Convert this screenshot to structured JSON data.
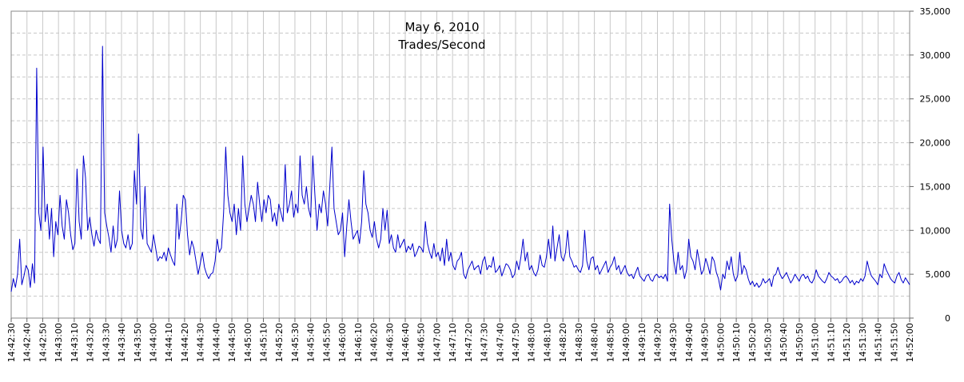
{
  "chart_data": {
    "type": "line",
    "title": "May 6, 2010",
    "subtitle": "Trades/Second",
    "xlabel": "",
    "ylabel": "",
    "ylim": [
      0,
      35000
    ],
    "y_ticks": [
      "0",
      "5,000",
      "10,000",
      "15,000",
      "20,000",
      "25,000",
      "30,000",
      "35,000"
    ],
    "y_tick_values": [
      0,
      5000,
      10000,
      15000,
      20000,
      25000,
      30000,
      35000
    ],
    "y_axis_side": "right",
    "grid": true,
    "x_ticks": [
      "14:42:30",
      "14:42:40",
      "14:42:50",
      "14:43:00",
      "14:43:10",
      "14:43:20",
      "14:43:30",
      "14:43:40",
      "14:43:50",
      "14:44:00",
      "14:44:10",
      "14:44:20",
      "14:44:30",
      "14:44:40",
      "14:44:50",
      "14:45:00",
      "14:45:10",
      "14:45:20",
      "14:45:30",
      "14:45:40",
      "14:45:50",
      "14:46:00",
      "14:46:10",
      "14:46:20",
      "14:46:30",
      "14:46:40",
      "14:46:50",
      "14:47:00",
      "14:47:10",
      "14:47:20",
      "14:47:30",
      "14:47:40",
      "14:47:50",
      "14:48:00",
      "14:48:10",
      "14:48:20",
      "14:48:30",
      "14:48:40",
      "14:48:50",
      "14:49:00",
      "14:49:10",
      "14:49:20",
      "14:49:30",
      "14:49:40",
      "14:49:50",
      "14:50:00",
      "14:50:10",
      "14:50:20",
      "14:50:30",
      "14:50:40",
      "14:50:50",
      "14:51:00",
      "14:51:10",
      "14:51:20",
      "14:51:30",
      "14:51:40",
      "14:51:50",
      "14:52:00"
    ],
    "series": [
      {
        "color": "#0000cc",
        "x_start": "14:42:30",
        "x_end": "14:52:00",
        "values": [
          3000,
          4500,
          3500,
          5000,
          9000,
          3800,
          4800,
          6000,
          5500,
          3500,
          6200,
          4000,
          28500,
          12000,
          10000,
          19500,
          11000,
          13000,
          9000,
          12500,
          7000,
          11000,
          9500,
          14000,
          10500,
          9000,
          13500,
          12000,
          9500,
          7800,
          8500,
          17000,
          11000,
          9000,
          18500,
          16000,
          10000,
          11500,
          9500,
          8200,
          10000,
          9000,
          8500,
          31000,
          12000,
          10500,
          9200,
          7500,
          10500,
          8000,
          9000,
          14500,
          10000,
          8500,
          8000,
          9500,
          7800,
          8500,
          16800,
          13000,
          21000,
          10200,
          9000,
          15000,
          8500,
          8000,
          7500,
          9500,
          8000,
          6500,
          7000,
          6800,
          7500,
          6500,
          8000,
          7200,
          6500,
          6000,
          13000,
          9000,
          11000,
          14000,
          13500,
          9500,
          7200,
          8800,
          8000,
          6500,
          5000,
          6200,
          7500,
          5800,
          5000,
          4500,
          5000,
          5200,
          6500,
          9000,
          7500,
          8000,
          12000,
          19500,
          14000,
          12000,
          11000,
          13000,
          9500,
          12500,
          10000,
          18500,
          13000,
          11000,
          12500,
          14000,
          13000,
          11000,
          15500,
          13000,
          11000,
          13500,
          12000,
          14000,
          13500,
          11000,
          12000,
          10500,
          13000,
          12000,
          11000,
          17500,
          12000,
          13000,
          14500,
          11500,
          13000,
          12000,
          18500,
          14000,
          13000,
          15000,
          12500,
          11500,
          18500,
          14000,
          10000,
          13000,
          12000,
          14500,
          13000,
          10500,
          15000,
          19500,
          12500,
          11000,
          9500,
          10000,
          12000,
          7000,
          10500,
          13500,
          11000,
          9000,
          9500,
          10000,
          8500,
          11000,
          16800,
          13000,
          12000,
          10000,
          9200,
          11000,
          9000,
          8000,
          9000,
          12500,
          10000,
          12300,
          8500,
          9500,
          8000,
          7500,
          9500,
          8000,
          8500,
          9000,
          7500,
          8200,
          7800,
          8500,
          7000,
          7500,
          8200,
          8000,
          7500,
          11000,
          8500,
          7500,
          6800,
          8500,
          7000,
          7500,
          6500,
          8000,
          6000,
          9000,
          6500,
          7500,
          6000,
          5500,
          6500,
          6800,
          7500,
          5000,
          4500,
          5500,
          6000,
          6500,
          5500,
          5800,
          6000,
          5000,
          6500,
          7000,
          5500,
          6000,
          5800,
          7000,
          5200,
          5500,
          6000,
          4800,
          5500,
          6200,
          6000,
          5500,
          4600,
          5000,
          6500,
          5500,
          7000,
          9000,
          6500,
          7500,
          5500,
          6000,
          5200,
          4800,
          5500,
          7200,
          6000,
          5800,
          7000,
          9000,
          6800,
          10500,
          6500,
          8000,
          9500,
          7000,
          6500,
          7500,
          10000,
          7000,
          6500,
          5800,
          6000,
          5500,
          5200,
          6000,
          10000,
          6500,
          5500,
          6800,
          7000,
          5500,
          6000,
          5000,
          5500,
          6000,
          6500,
          5200,
          5800,
          6200,
          7000,
          5500,
          6000,
          5000,
          5500,
          6000,
          5200,
          4800,
          5000,
          4500,
          5200,
          5800,
          4800,
          4500,
          4200,
          4800,
          5000,
          4400,
          4200,
          4800,
          5000,
          4600,
          4800,
          4500,
          5000,
          4200,
          13000,
          9000,
          6500,
          5000,
          7500,
          5500,
          6000,
          4500,
          5500,
          9000,
          7000,
          6500,
          5500,
          7800,
          6500,
          5000,
          5500,
          6800,
          6000,
          5000,
          7000,
          6500,
          5200,
          4500,
          3200,
          5000,
          4500,
          6500,
          5500,
          7000,
          5000,
          4200,
          4800,
          7500,
          5000,
          6000,
          5500,
          4500,
          3800,
          4200,
          3600,
          4000,
          3500,
          3800,
          4500,
          4000,
          4200,
          4500,
          3600,
          4800,
          5000,
          5800,
          5000,
          4500,
          4800,
          5200,
          4600,
          4000,
          4400,
          5000,
          4600,
          4200,
          4800,
          5000,
          4500,
          4800,
          4200,
          4000,
          4500,
          5500,
          4800,
          4500,
          4200,
          4000,
          4500,
          5200,
          4800,
          4600,
          4300,
          4500,
          4000,
          4200,
          4600,
          4800,
          4500,
          4000,
          4300,
          3800,
          4200,
          4000,
          4500,
          4200,
          4800,
          6500,
          5500,
          4800,
          4500,
          4200,
          3800,
          5000,
          4600,
          6200,
          5500,
          5000,
          4500,
          4200,
          4000,
          4800,
          5200,
          4400,
          4000,
          4600,
          4200,
          3800
        ]
      }
    ]
  }
}
